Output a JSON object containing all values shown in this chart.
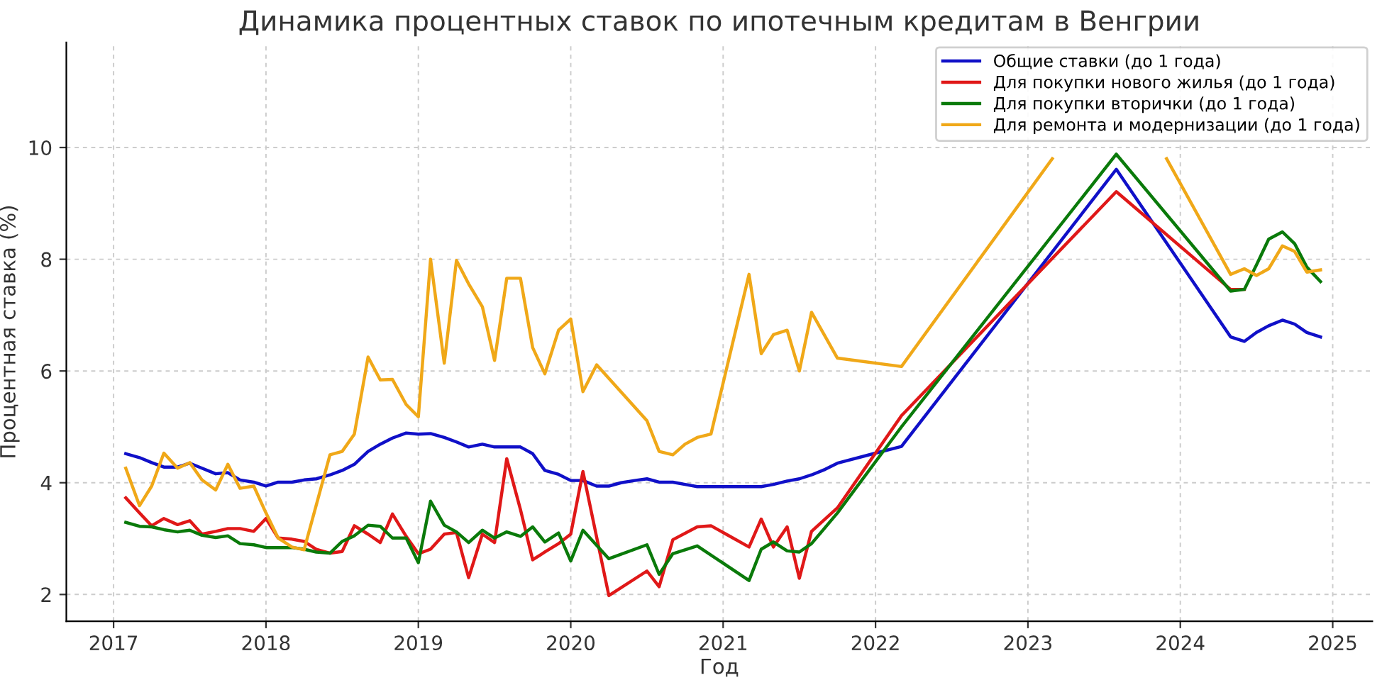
{
  "chart_data": {
    "type": "line",
    "title": "Динамика процентных ставок по ипотечным кредитам в Венгрии",
    "xlabel": "Год",
    "ylabel": "Процентная ставка (%)",
    "xlim": [
      2016.69,
      2025.26
    ],
    "ylim": [
      1.52,
      11.88
    ],
    "xticks": [
      2017,
      2018,
      2019,
      2020,
      2021,
      2022,
      2023,
      2024,
      2025
    ],
    "yticks": [
      2,
      4,
      6,
      8,
      10
    ],
    "grid": true,
    "legend": "top right",
    "series": [
      {
        "name": "Общие ставки (до 1 года)",
        "color": "#1010c8",
        "x": [
          2017.08,
          2017.17,
          2017.25,
          2017.33,
          2017.42,
          2017.5,
          2017.58,
          2017.67,
          2017.75,
          2017.83,
          2017.92,
          2018.0,
          2018.08,
          2018.17,
          2018.25,
          2018.33,
          2018.42,
          2018.5,
          2018.58,
          2018.67,
          2018.75,
          2018.83,
          2018.92,
          2019.0,
          2019.08,
          2019.17,
          2019.25,
          2019.33,
          2019.42,
          2019.5,
          2019.58,
          2019.67,
          2019.75,
          2019.83,
          2019.92,
          2020.0,
          2020.08,
          2020.17,
          2020.25,
          2020.33,
          2020.42,
          2020.5,
          2020.58,
          2020.67,
          2020.75,
          2020.83,
          2021.25,
          2021.33,
          2021.42,
          2021.5,
          2021.58,
          2021.67,
          2021.75,
          2022.0,
          2022.17,
          2023.58,
          2024.33,
          2024.42,
          2024.5,
          2024.58,
          2024.67,
          2024.75,
          2024.83,
          2024.92
        ],
        "values": [
          4.52,
          4.45,
          4.36,
          4.28,
          4.28,
          4.35,
          4.26,
          4.16,
          4.18,
          4.05,
          4.01,
          3.94,
          4.01,
          4.01,
          4.05,
          4.07,
          4.14,
          4.22,
          4.33,
          4.56,
          4.69,
          4.8,
          4.89,
          4.87,
          4.88,
          4.81,
          4.73,
          4.64,
          4.69,
          4.64,
          4.64,
          4.64,
          4.52,
          4.22,
          4.15,
          4.04,
          4.04,
          3.94,
          3.94,
          4.0,
          4.04,
          4.07,
          4.01,
          4.01,
          3.97,
          3.93,
          3.93,
          3.97,
          4.03,
          4.07,
          4.14,
          4.24,
          4.35,
          4.53,
          4.65,
          9.61,
          6.61,
          6.53,
          6.69,
          6.81,
          6.91,
          6.84,
          6.69,
          6.61
        ]
      },
      {
        "name": "Для покупки нового жилья (до 1 года)",
        "color": "#e01818",
        "x": [
          2017.08,
          2017.17,
          2017.25,
          2017.33,
          2017.42,
          2017.5,
          2017.58,
          2017.67,
          2017.75,
          2017.83,
          2017.92,
          2018.0,
          2018.08,
          2018.17,
          2018.25,
          2018.33,
          2018.42,
          2018.5,
          2018.58,
          2018.67,
          2018.75,
          2018.83,
          2018.92,
          2019.0,
          2019.08,
          2019.17,
          2019.25,
          2019.33,
          2019.42,
          2019.5,
          2019.58,
          2019.67,
          2019.75,
          2019.83,
          2019.92,
          2020.0,
          2020.08,
          2020.25,
          2020.5,
          2020.58,
          2020.67,
          2020.83,
          2020.92,
          2021.17,
          2021.25,
          2021.33,
          2021.42,
          2021.5,
          2021.58,
          2021.75,
          2022.17,
          2023.58,
          2024.33,
          2024.42
        ],
        "values": [
          3.73,
          3.46,
          3.23,
          3.36,
          3.25,
          3.32,
          3.08,
          3.13,
          3.18,
          3.18,
          3.13,
          3.36,
          3.01,
          2.99,
          2.95,
          2.81,
          2.74,
          2.77,
          3.23,
          3.08,
          2.93,
          3.44,
          3.04,
          2.73,
          2.81,
          3.08,
          3.11,
          2.3,
          3.08,
          2.93,
          4.43,
          3.52,
          2.62,
          2.76,
          2.91,
          3.08,
          4.2,
          1.98,
          2.42,
          2.14,
          2.98,
          3.21,
          3.23,
          2.85,
          3.35,
          2.85,
          3.21,
          2.29,
          3.13,
          3.55,
          5.2,
          9.21,
          7.46,
          7.46
        ]
      },
      {
        "name": "Для покупки вторички (до 1 года)",
        "color": "#0a7a0a",
        "x": [
          2017.08,
          2017.17,
          2017.25,
          2017.33,
          2017.42,
          2017.5,
          2017.58,
          2017.67,
          2017.75,
          2017.83,
          2017.92,
          2018.0,
          2018.08,
          2018.17,
          2018.25,
          2018.33,
          2018.42,
          2018.5,
          2018.58,
          2018.67,
          2018.75,
          2018.83,
          2018.92,
          2019.0,
          2019.08,
          2019.17,
          2019.25,
          2019.33,
          2019.42,
          2019.5,
          2019.58,
          2019.67,
          2019.75,
          2019.83,
          2019.92,
          2020.0,
          2020.08,
          2020.25,
          2020.5,
          2020.58,
          2020.67,
          2020.83,
          2021.17,
          2021.25,
          2021.33,
          2021.42,
          2021.5,
          2021.58,
          2021.75,
          2022.17,
          2023.58,
          2024.33,
          2024.42,
          2024.5,
          2024.58,
          2024.67,
          2024.75,
          2024.83,
          2024.92
        ],
        "values": [
          3.29,
          3.22,
          3.21,
          3.16,
          3.12,
          3.15,
          3.06,
          3.02,
          3.05,
          2.91,
          2.89,
          2.84,
          2.84,
          2.84,
          2.81,
          2.76,
          2.74,
          2.95,
          3.05,
          3.24,
          3.22,
          3.01,
          3.01,
          2.57,
          3.67,
          3.24,
          3.12,
          2.93,
          3.15,
          3.01,
          3.12,
          3.04,
          3.21,
          2.94,
          3.1,
          2.6,
          3.15,
          2.64,
          2.89,
          2.36,
          2.73,
          2.87,
          2.25,
          2.81,
          2.94,
          2.78,
          2.76,
          2.91,
          3.46,
          5.0,
          9.88,
          7.43,
          7.46,
          7.9,
          8.36,
          8.49,
          8.28,
          7.86,
          7.6
        ]
      },
      {
        "name": "Для ремонта и модернизации (до 1 года)",
        "color": "#f0a818",
        "x": [
          2017.08,
          2017.17,
          2017.25,
          2017.33,
          2017.42,
          2017.5,
          2017.58,
          2017.67,
          2017.75,
          2017.83,
          2017.92,
          2018.0,
          2018.08,
          2018.17,
          2018.25,
          2018.42,
          2018.5,
          2018.58,
          2018.67,
          2018.75,
          2018.83,
          2018.92,
          2019.0,
          2019.08,
          2019.17,
          2019.25,
          2019.33,
          2019.42,
          2019.5,
          2019.58,
          2019.67,
          2019.75,
          2019.83,
          2019.92,
          2020.0,
          2020.08,
          2020.17,
          2020.5,
          2020.58,
          2020.67,
          2020.75,
          2020.83,
          2020.92,
          2021.17,
          2021.25,
          2021.33,
          2021.42,
          2021.5,
          2021.58,
          2021.75,
          2022.17,
          2023.16,
          2023.58,
          2023.91,
          2024.33,
          2024.42,
          2024.5,
          2024.58,
          2024.67,
          2024.75,
          2024.83,
          2024.92
        ],
        "values": [
          4.26,
          3.59,
          3.94,
          4.53,
          4.26,
          4.36,
          4.05,
          3.87,
          4.33,
          3.9,
          3.94,
          3.46,
          3.01,
          2.85,
          2.8,
          4.5,
          4.56,
          4.87,
          6.25,
          5.84,
          5.85,
          5.4,
          5.18,
          8.0,
          6.14,
          7.98,
          7.56,
          7.15,
          6.19,
          7.66,
          7.66,
          6.42,
          5.95,
          6.73,
          6.93,
          5.63,
          6.11,
          5.11,
          4.56,
          4.5,
          4.69,
          4.81,
          4.87,
          7.73,
          6.31,
          6.65,
          6.73,
          6.0,
          7.05,
          6.23,
          6.08,
          9.8,
          null,
          9.8,
          7.73,
          7.83,
          7.71,
          7.83,
          8.24,
          8.14,
          7.77,
          7.81
        ]
      }
    ]
  }
}
